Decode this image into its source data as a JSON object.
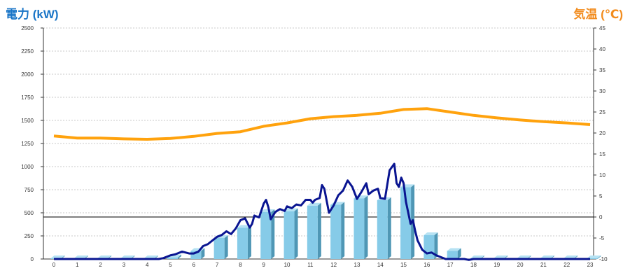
{
  "colors": {
    "power_title": "#1a75c7",
    "temp_title": "#f28c1e",
    "bar_front": "#86cbe8",
    "bar_side": "#4f97b5",
    "bar_top": "#b6e2f3",
    "power_line": "#0a1591",
    "temp_line": "#ffa20d",
    "grid": "#c8c8c8"
  },
  "chart_data": {
    "type": "bar",
    "title_left": "電力 (kW)",
    "title_right": "気温 (℃)",
    "x_ticks": [
      "0",
      "1",
      "2",
      "3",
      "4",
      "5",
      "6",
      "7",
      "8",
      "9",
      "10",
      "11",
      "12",
      "13",
      "14",
      "15",
      "16",
      "17",
      "18",
      "19",
      "20",
      "21",
      "22",
      "23"
    ],
    "y_left_ticks": [
      "0",
      "250",
      "500",
      "750",
      "1000",
      "1250",
      "1500",
      "1750",
      "2000",
      "2250",
      "2500"
    ],
    "y_right_ticks": [
      "-10",
      "-5",
      "0",
      "5",
      "10",
      "15",
      "20",
      "25",
      "30",
      "35",
      "40",
      "45"
    ],
    "ylim_left": [
      0,
      2500
    ],
    "ylim_right": [
      -10,
      45
    ],
    "grid": true,
    "series": [
      {
        "kind": "bar",
        "axis": "left",
        "values": [
          0,
          0,
          0,
          0,
          0,
          10,
          80,
          220,
          330,
          500,
          510,
          570,
          580,
          650,
          630,
          770,
          250,
          80,
          0,
          0,
          0,
          0,
          0,
          0
        ]
      },
      {
        "kind": "line",
        "axis": "left",
        "x": [
          0,
          0.5,
          1,
          1.5,
          2,
          2.5,
          3,
          3.5,
          4,
          4.5,
          4.7,
          5,
          5.2,
          5.5,
          5.8,
          6,
          6.2,
          6.4,
          6.6,
          6.8,
          7,
          7.2,
          7.4,
          7.6,
          7.8,
          8,
          8.2,
          8.4,
          8.5,
          8.6,
          8.8,
          9,
          9.1,
          9.2,
          9.3,
          9.5,
          9.7,
          9.9,
          10,
          10.2,
          10.4,
          10.6,
          10.8,
          11,
          11.1,
          11.2,
          11.4,
          11.5,
          11.6,
          11.8,
          12,
          12.2,
          12.4,
          12.6,
          12.8,
          13,
          13.2,
          13.4,
          13.5,
          13.7,
          13.9,
          14,
          14.2,
          14.4,
          14.6,
          14.7,
          14.8,
          14.9,
          15,
          15.1,
          15.3,
          15.4,
          15.5,
          15.6,
          15.8,
          16,
          16.2,
          16.4,
          16.6,
          16.8,
          17,
          17.2,
          17.4,
          17.6,
          17.8,
          18,
          18.5,
          19,
          20,
          21,
          22,
          23
        ],
        "values": [
          0,
          0,
          0,
          0,
          0,
          0,
          0,
          0,
          0,
          0,
          10,
          40,
          50,
          80,
          60,
          60,
          80,
          140,
          160,
          200,
          240,
          260,
          300,
          270,
          330,
          420,
          440,
          340,
          380,
          470,
          450,
          600,
          640,
          560,
          430,
          510,
          540,
          520,
          570,
          550,
          590,
          580,
          640,
          640,
          610,
          640,
          660,
          800,
          760,
          500,
          580,
          690,
          740,
          850,
          780,
          650,
          730,
          820,
          700,
          740,
          760,
          660,
          650,
          960,
          1030,
          820,
          780,
          880,
          820,
          620,
          380,
          420,
          300,
          200,
          100,
          60,
          70,
          40,
          20,
          0,
          0,
          0,
          0,
          0,
          -10,
          0,
          0,
          0,
          0,
          0,
          0,
          0
        ]
      },
      {
        "kind": "line",
        "axis": "right",
        "values": [
          19.3,
          18.8,
          18.8,
          18.6,
          18.5,
          18.7,
          19.2,
          19.9,
          20.3,
          21.6,
          22.4,
          23.4,
          23.9,
          24.2,
          24.7,
          25.6,
          25.8,
          25.0,
          24.2,
          23.6,
          23.1,
          22.7,
          22.4,
          22.0
        ]
      }
    ]
  }
}
